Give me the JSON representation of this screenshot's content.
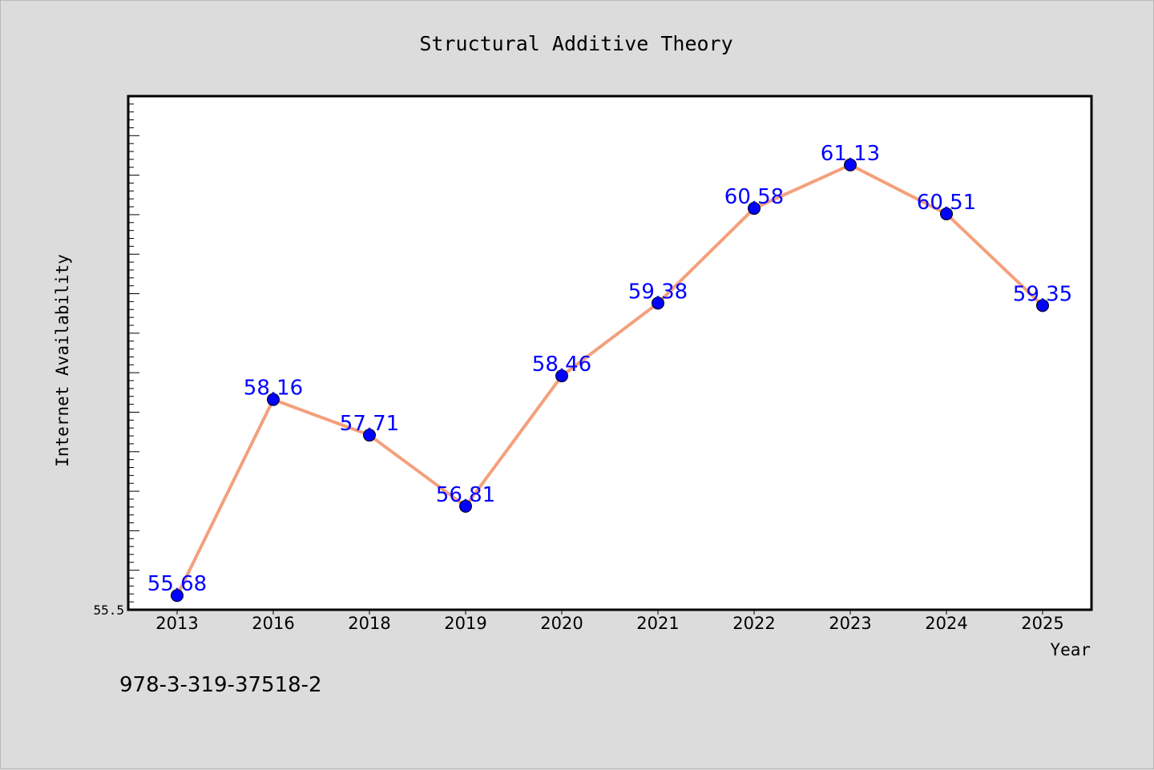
{
  "footer_code": "978-3-319-37518-2",
  "colors": {
    "background": "#dcdcdc",
    "plot_background": "#ffffff",
    "line": "#f4a07c",
    "marker": "#0000ff",
    "data_label": "#0000ff",
    "text": "#000000"
  },
  "chart_data": {
    "type": "line",
    "title": "Structural Additive Theory",
    "xlabel": "Year",
    "ylabel": "Internet Availability",
    "categories": [
      "2013",
      "2016",
      "2018",
      "2019",
      "2020",
      "2021",
      "2022",
      "2023",
      "2024",
      "2025"
    ],
    "series": [
      {
        "values": [
          55.68,
          58.16,
          57.71,
          56.81,
          58.46,
          59.38,
          60.58,
          61.13,
          60.51,
          59.35
        ],
        "labels": [
          "55.68",
          "58.16",
          "57.71",
          "56.81",
          "58.46",
          "59.38",
          "60.58",
          "61.13",
          "60.51",
          "59.35"
        ]
      }
    ],
    "ylim": [
      55.5,
      62.0
    ],
    "y_tick_labels": [
      "55.5"
    ],
    "y_minor_tick_step": 0.1,
    "y_major_tick_step": 0.5,
    "grid": false,
    "legend": "none",
    "markers": "filled-circle"
  }
}
